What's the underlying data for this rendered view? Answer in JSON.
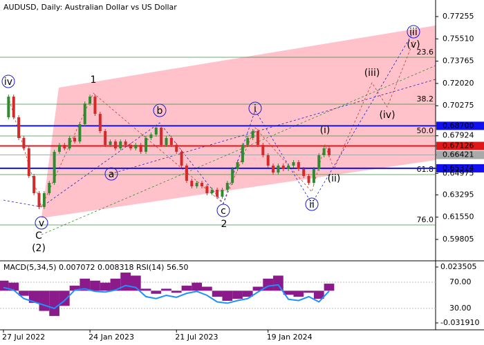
{
  "chart_data": {
    "type": "candlestick",
    "title": "AUDUSD, Daily:  Australian Dollar vs US Dollar",
    "prices": [
      0.69367,
      0.70988,
      0.69367,
      0.67747,
      0.66936,
      0.64775,
      0.63425,
      0.62344,
      0.63425,
      0.64235,
      0.66666,
      0.67206,
      0.66936,
      0.67747,
      0.67476,
      0.68827,
      0.70448,
      0.70988,
      0.69638,
      0.68287,
      0.67206,
      0.67476,
      0.66936,
      0.67476,
      0.67206,
      0.66936,
      0.67206,
      0.66666,
      0.67747,
      0.68017,
      0.68557,
      0.67206,
      0.67747,
      0.67206,
      0.66666,
      0.65586,
      0.64397,
      0.63965,
      0.64235,
      0.63965,
      0.63425,
      0.63695,
      0.63155,
      0.63695,
      0.64235,
      0.65316,
      0.65856,
      0.67206,
      0.67747,
      0.68287,
      0.67206,
      0.66396,
      0.65586,
      0.65045,
      0.65586,
      0.65316,
      0.65586,
      0.65856,
      0.65316,
      0.64775,
      0.64235,
      0.65316,
      0.66396,
      0.66936,
      0.66396
    ],
    "up_color": "#2e8b2e",
    "down_color": "#d42a2a",
    "ylim": [
      0.58131,
      0.78552
    ],
    "yticks": [
      0.77255,
      {
        "value": 0.7551,
        "label": "0.75510"
      },
      0.73765,
      {
        "value": 0.7202,
        "label": "0.72020"
      },
      0.70275,
      {
        "value": 0.687,
        "label": "0.68700",
        "color": "#1010f0"
      },
      0.67924,
      {
        "value": 0.67126,
        "label": "0.67126",
        "color": "#e01818"
      },
      {
        "value": 0.66421,
        "label": "0.66421",
        "color": "#a9a9a9"
      },
      {
        "value": 0.65374,
        "label": "0.65374",
        "color": "#1010f0"
      },
      0.64975,
      0.63295,
      {
        "value": 0.6155,
        "label": "0.61550"
      },
      0.59805
    ],
    "xticks": [
      {
        "value": 0,
        "label": "27 Jul 2022"
      },
      {
        "value": 17,
        "label": "24 Jan 2023"
      },
      {
        "value": 34,
        "label": "21 Jul 2023"
      },
      {
        "value": 52,
        "label": "19 Jan 2024"
      }
    ],
    "fib_levels": [
      {
        "value": 0.74068,
        "label": "23.6"
      },
      {
        "value": 0.70394,
        "label": "38.2"
      },
      {
        "value": 0.67908,
        "label": "50.0"
      },
      {
        "value": 0.64884,
        "label": "61.8"
      },
      {
        "value": 0.6094,
        "label": "76.0"
      }
    ],
    "fib_color": "#3a8f3a",
    "annotations": [
      "iv",
      "1",
      "b",
      "i",
      "(i)",
      "(iii)",
      "(iv)",
      "(v)",
      "iii",
      "a",
      "c",
      "2",
      "ii",
      "(ii)",
      "v",
      "C",
      "(2)"
    ],
    "indicator": {
      "title": "MACD(5,34,5) 0.007072 0.008318 RSI(14) 56.50",
      "macd": [
        0.01,
        0.008,
        -0.005,
        -0.012,
        -0.02,
        -0.025,
        -0.015,
        0.005,
        0.012,
        0.01,
        0.008,
        0.012,
        0.018,
        0.015,
        0.002,
        -0.003,
        0.002,
        -0.002,
        0.005,
        0.008,
        0.004,
        -0.006,
        -0.01,
        -0.008,
        -0.006,
        0.004,
        0.012,
        0.015,
        -0.004,
        -0.006,
        -0.002,
        -0.008,
        0.007
      ],
      "macd_color": "#8b1a8b",
      "rsi": [
        62,
        58,
        45,
        40,
        35,
        30,
        42,
        58,
        60,
        56,
        55,
        58,
        65,
        62,
        48,
        45,
        50,
        47,
        53,
        56,
        50,
        40,
        38,
        42,
        45,
        55,
        64,
        66,
        44,
        42,
        48,
        40,
        56.5
      ],
      "rsi_color": "#1e90ff",
      "ylim": [
        -0.03875,
        0.02966
      ],
      "yticks": [
        0.023505,
        {
          "value": -0.03191,
          "label": "-0.031910"
        }
      ],
      "rsi_lim": [
        -2.6,
        102.6
      ],
      "rsi_ticks": [
        {
          "value": 70,
          "label": "70.00"
        },
        {
          "value": 30,
          "label": "30.00"
        }
      ]
    }
  }
}
